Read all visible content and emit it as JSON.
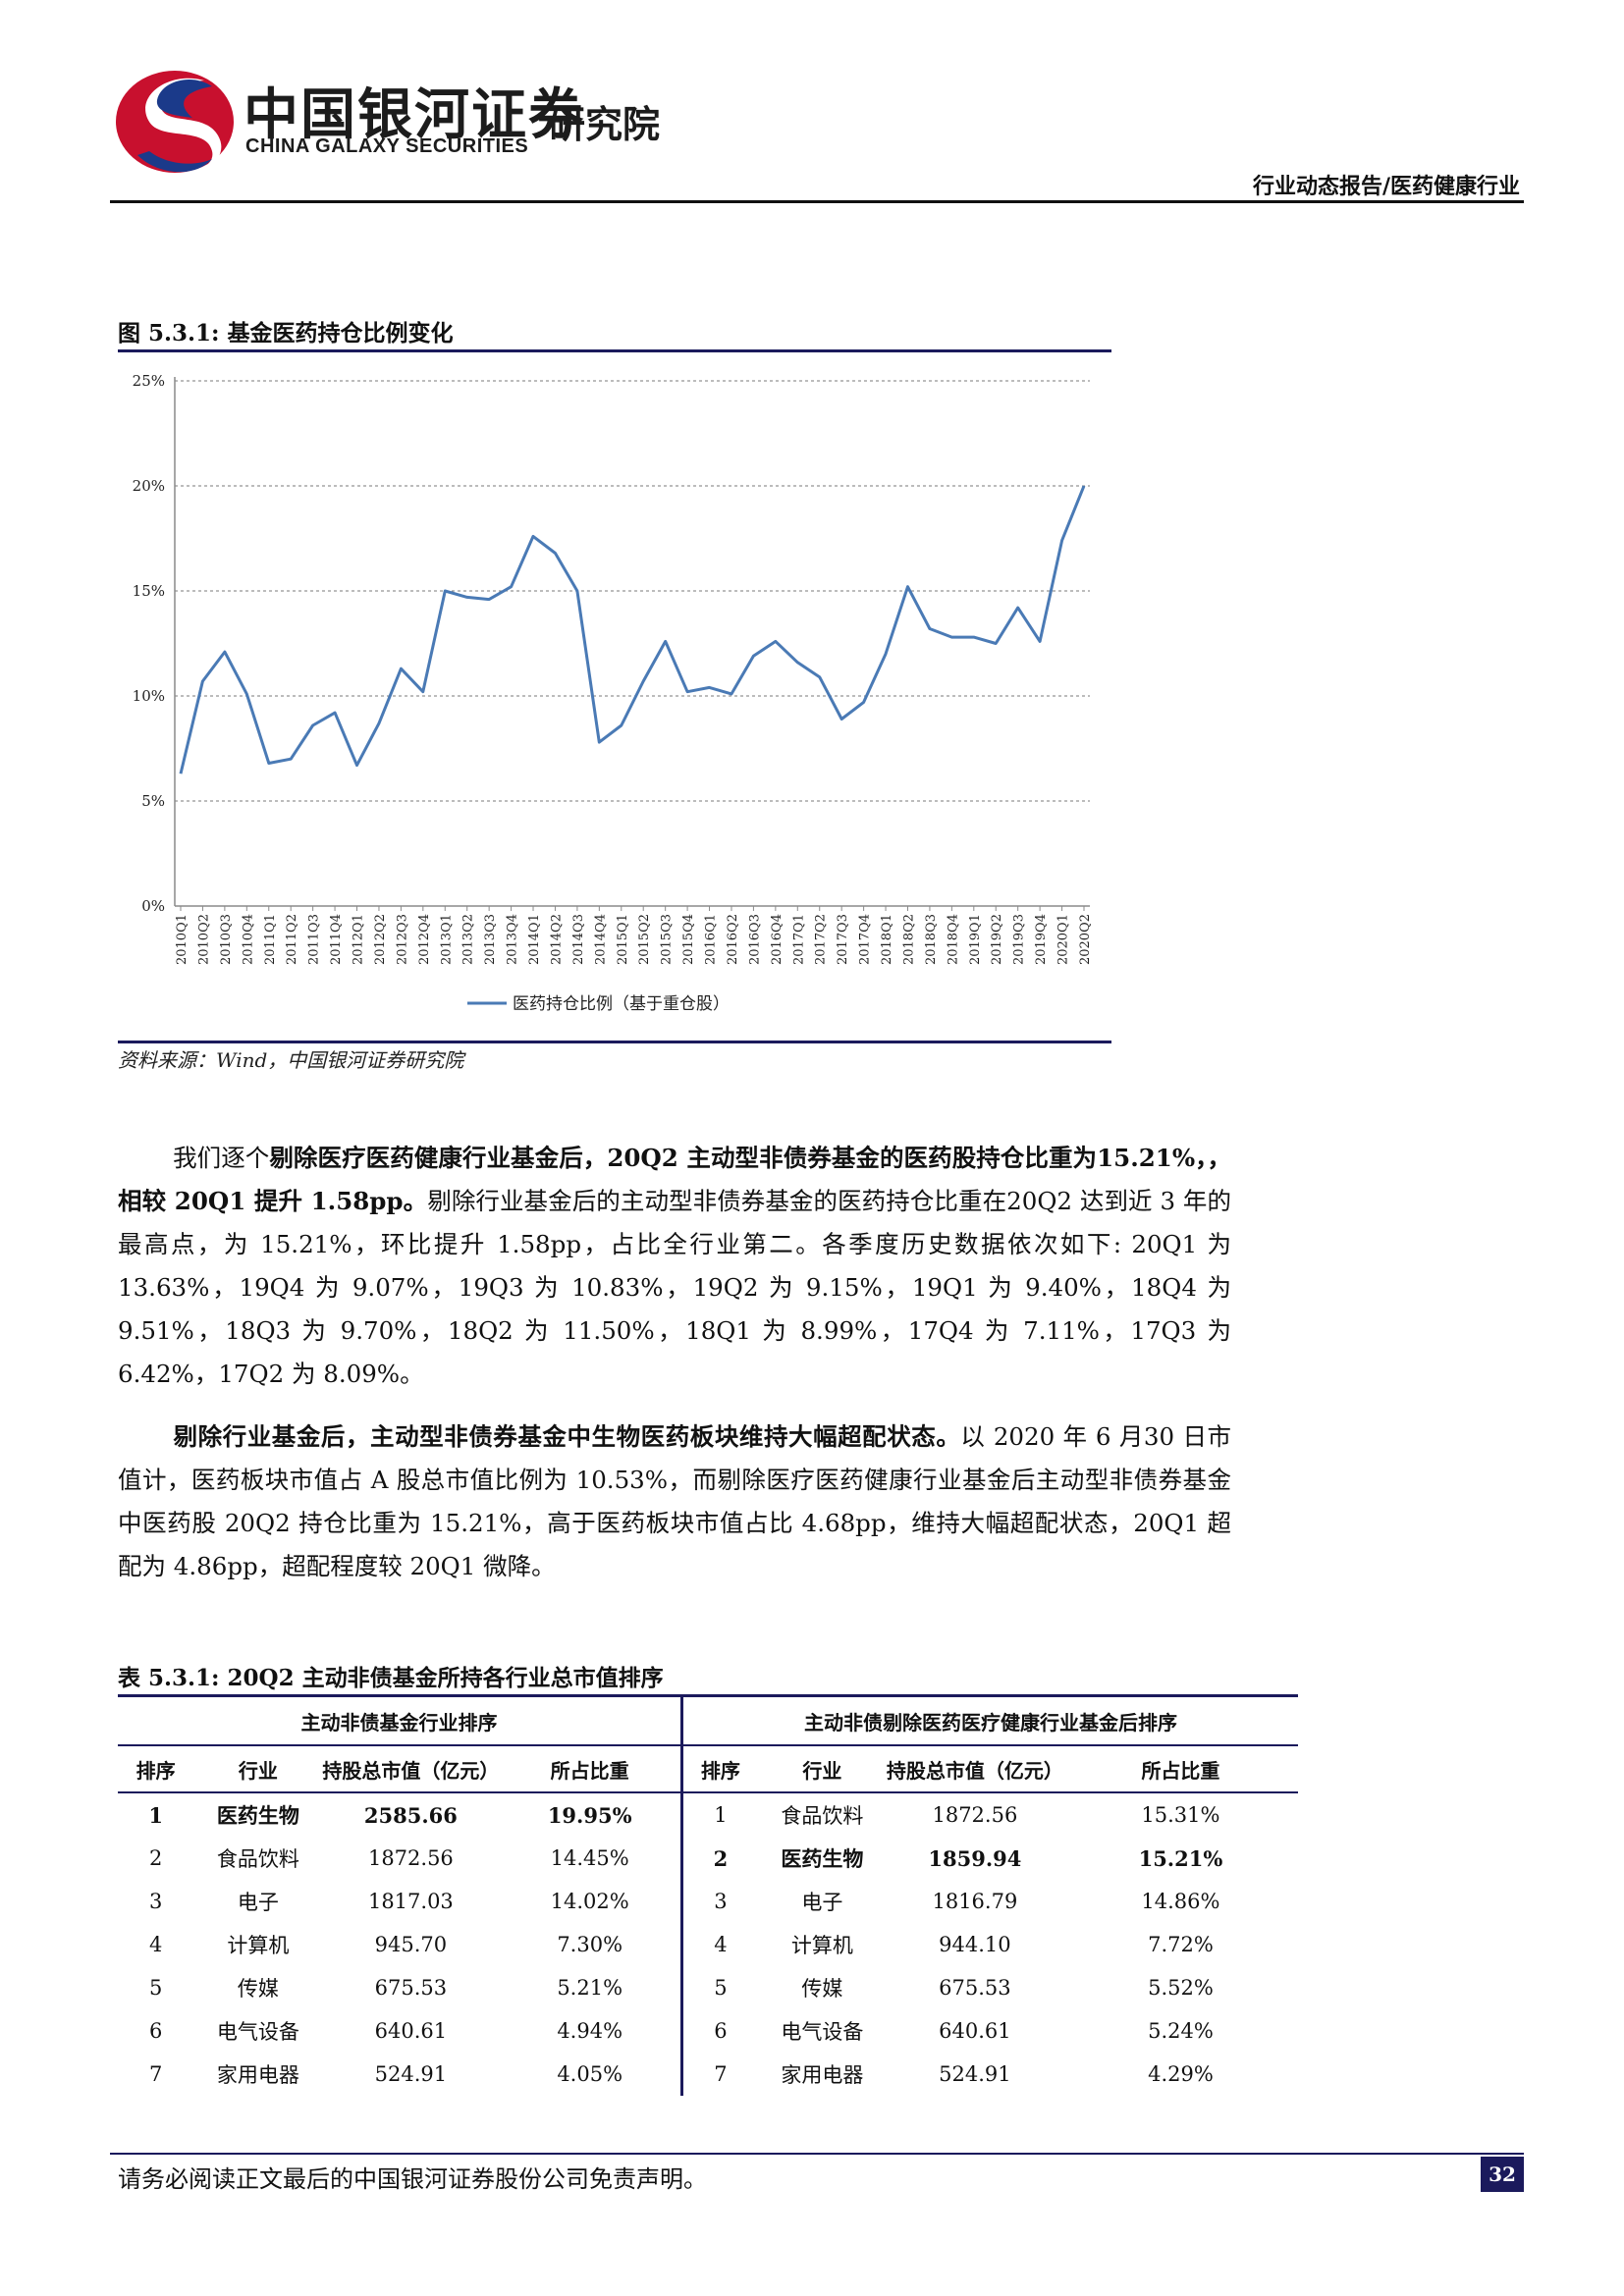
{
  "header": {
    "logo_cn": "中国银河证券",
    "logo_en": "CHINA GALAXY SECURITIES",
    "institute": "研究院",
    "report_type": "行业动态报告/医药健康行业"
  },
  "figure": {
    "title": "图 5.3.1:  基金医药持仓比例变化",
    "source": "资料来源：Wind，中国银河证券研究院"
  },
  "chart_data": {
    "type": "line",
    "title": "",
    "xlabel": "",
    "ylabel": "",
    "ylim": [
      0,
      25
    ],
    "yticks": [
      "0%",
      "5%",
      "10%",
      "15%",
      "20%",
      "25%"
    ],
    "grid": "horizontal-dashed",
    "legend_position": "bottom",
    "color": "#4a7ab5",
    "x": [
      "2010Q1",
      "2010Q2",
      "2010Q3",
      "2010Q4",
      "2011Q1",
      "2011Q2",
      "2011Q3",
      "2011Q4",
      "2012Q1",
      "2012Q2",
      "2012Q3",
      "2012Q4",
      "2013Q1",
      "2013Q2",
      "2013Q3",
      "2013Q4",
      "2014Q1",
      "2014Q2",
      "2014Q3",
      "2014Q4",
      "2015Q1",
      "2015Q2",
      "2015Q3",
      "2015Q4",
      "2016Q1",
      "2016Q2",
      "2016Q3",
      "2016Q4",
      "2017Q1",
      "2017Q2",
      "2017Q3",
      "2017Q4",
      "2018Q1",
      "2018Q2",
      "2018Q3",
      "2018Q4",
      "2019Q1",
      "2019Q2",
      "2019Q3",
      "2019Q4",
      "2020Q1",
      "2020Q2"
    ],
    "series": [
      {
        "name": "医药持仓比例（基于重仓股）",
        "values": [
          6.3,
          10.7,
          12.1,
          10.1,
          6.8,
          7.0,
          8.6,
          9.2,
          6.7,
          8.7,
          11.3,
          10.2,
          15.0,
          14.7,
          14.6,
          15.2,
          17.6,
          16.8,
          15.0,
          7.8,
          8.6,
          10.7,
          12.6,
          10.2,
          10.4,
          10.1,
          11.9,
          12.6,
          11.6,
          10.9,
          8.9,
          9.7,
          12.0,
          15.2,
          13.2,
          12.8,
          12.8,
          12.5,
          14.2,
          12.6,
          17.4,
          20.0
        ]
      }
    ]
  },
  "paragraph1": {
    "lead": "我们逐个",
    "bold1": "剔除医疗医药健康行业基金后，20Q2 主动型非债券基金的医药股持仓比重为15.21%，，相较 20Q1 提升 1.58pp。",
    "rest": "剔除行业基金后的主动型非债券基金的医药持仓比重在20Q2 达到近 3 年的最高点，为 15.21%，环比提升 1.58pp，占比全行业第二。各季度历史数据依次如下: 20Q1 为 13.63%，19Q4 为 9.07%，19Q3 为 10.83%，19Q2 为 9.15%，19Q1 为 9.40%，18Q4 为 9.51%，18Q3 为 9.70%，18Q2 为 11.50%，18Q1 为 8.99%，17Q4 为 7.11%，17Q3 为6.42%，17Q2 为 8.09%。"
  },
  "paragraph2": {
    "bold1": "剔除行业基金后，主动型非债券基金中生物医药板块维持大幅超配状态。",
    "rest": "以 2020 年 6 月30 日市值计，医药板块市值占 A 股总市值比例为 10.53%，而剔除医疗医药健康行业基金后主动型非债券基金中医药股 20Q2 持仓比重为 15.21%，高于医药板块市值占比 4.68pp，维持大幅超配状态，20Q1 超配为 4.86pp，超配程度较 20Q1 微降。"
  },
  "table": {
    "title": "表 5.3.1:  20Q2 主动非债基金所持各行业总市值排序",
    "group_left": "主动非债基金行业排序",
    "group_right": "主动非债剔除医药医疗健康行业基金后排序",
    "headers_left": [
      "排序",
      "行业",
      "持股总市值（亿元）",
      "所占比重"
    ],
    "headers_right": [
      "排序",
      "行业",
      "持股总市值（亿元）",
      "所占比重"
    ],
    "rows": [
      {
        "l": [
          "1",
          "医药生物",
          "2585.66",
          "19.95%"
        ],
        "r": [
          "1",
          "食品饮料",
          "1872.56",
          "15.31%"
        ]
      },
      {
        "l": [
          "2",
          "食品饮料",
          "1872.56",
          "14.45%"
        ],
        "r": [
          "2",
          "医药生物",
          "1859.94",
          "15.21%"
        ]
      },
      {
        "l": [
          "3",
          "电子",
          "1817.03",
          "14.02%"
        ],
        "r": [
          "3",
          "电子",
          "1816.79",
          "14.86%"
        ]
      },
      {
        "l": [
          "4",
          "计算机",
          "945.70",
          "7.30%"
        ],
        "r": [
          "4",
          "计算机",
          "944.10",
          "7.72%"
        ]
      },
      {
        "l": [
          "5",
          "传媒",
          "675.53",
          "5.21%"
        ],
        "r": [
          "5",
          "传媒",
          "675.53",
          "5.52%"
        ]
      },
      {
        "l": [
          "6",
          "电气设备",
          "640.61",
          "4.94%"
        ],
        "r": [
          "6",
          "电气设备",
          "640.61",
          "5.24%"
        ]
      },
      {
        "l": [
          "7",
          "家用电器",
          "524.91",
          "4.05%"
        ],
        "r": [
          "7",
          "家用电器",
          "524.91",
          "4.29%"
        ]
      }
    ]
  },
  "footer": {
    "disclaimer": "请务必阅读正文最后的中国银河证券股份公司免责声明。",
    "page_number": "32"
  }
}
